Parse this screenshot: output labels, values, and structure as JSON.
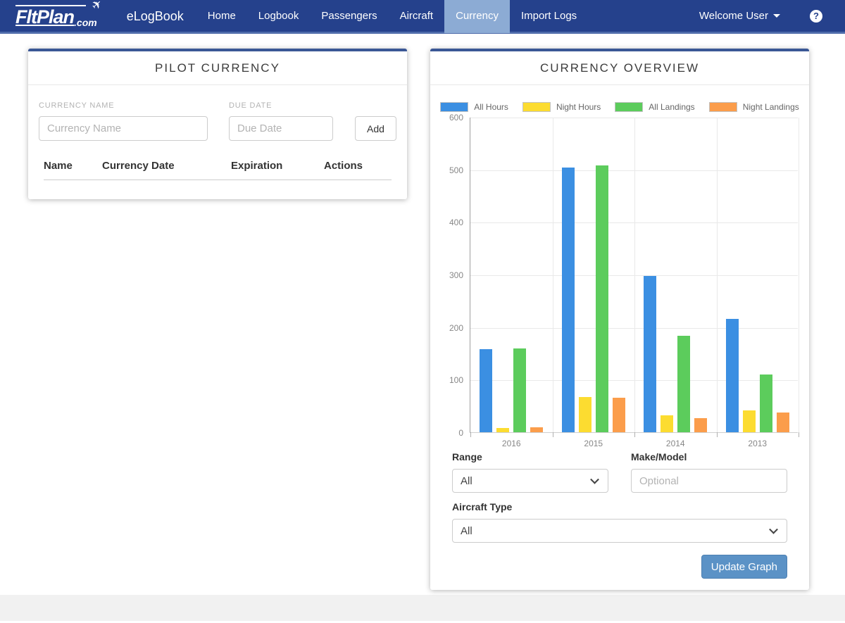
{
  "navbar": {
    "logo_main": "FltPlan",
    "logo_suffix": ".com",
    "brand": "eLogBook",
    "items": [
      {
        "label": "Home",
        "active": false
      },
      {
        "label": "Logbook",
        "active": false
      },
      {
        "label": "Passengers",
        "active": false
      },
      {
        "label": "Aircraft",
        "active": false
      },
      {
        "label": "Currency",
        "active": true
      },
      {
        "label": "Import Logs",
        "active": false
      }
    ],
    "user_menu_label": "Welcome User",
    "help_label": "?"
  },
  "pilot_currency": {
    "title": "PILOT CURRENCY",
    "currency_name_label": "CURRENCY NAME",
    "currency_name_placeholder": "Currency Name",
    "due_date_label": "DUE DATE",
    "due_date_placeholder": "Due Date",
    "add_button_label": "Add",
    "table_headers": [
      "Name",
      "Currency Date",
      "Expiration",
      "Actions"
    ],
    "rows": []
  },
  "currency_overview": {
    "title": "CURRENCY OVERVIEW",
    "range_label": "Range",
    "range_value": "All",
    "make_model_label": "Make/Model",
    "make_model_placeholder": "Optional",
    "aircraft_type_label": "Aircraft Type",
    "aircraft_type_value": "All",
    "update_button_label": "Update Graph"
  },
  "chart_data": {
    "type": "bar",
    "categories": [
      "2016",
      "2015",
      "2014",
      "2013"
    ],
    "series": [
      {
        "name": "All Hours",
        "color": "#3b8fe2",
        "values": [
          158,
          503,
          297,
          216
        ]
      },
      {
        "name": "Night Hours",
        "color": "#fcdc30",
        "values": [
          8,
          67,
          32,
          42
        ]
      },
      {
        "name": "All Landings",
        "color": "#5ccc5c",
        "values": [
          160,
          508,
          183,
          110
        ]
      },
      {
        "name": "Night Landings",
        "color": "#fb9d4b",
        "values": [
          10,
          66,
          27,
          37
        ]
      }
    ],
    "title": "CURRENCY OVERVIEW",
    "xlabel": "",
    "ylabel": "",
    "ylim": [
      0,
      600
    ],
    "yticks": [
      0,
      100,
      200,
      300,
      400,
      500,
      600
    ],
    "grid": true,
    "legend_position": "top"
  },
  "colors": {
    "navbar": "#25418c",
    "navbar_active_tab": "#8cabd4",
    "card_accent": "#3a5795",
    "update_button": "#5b92c6"
  }
}
